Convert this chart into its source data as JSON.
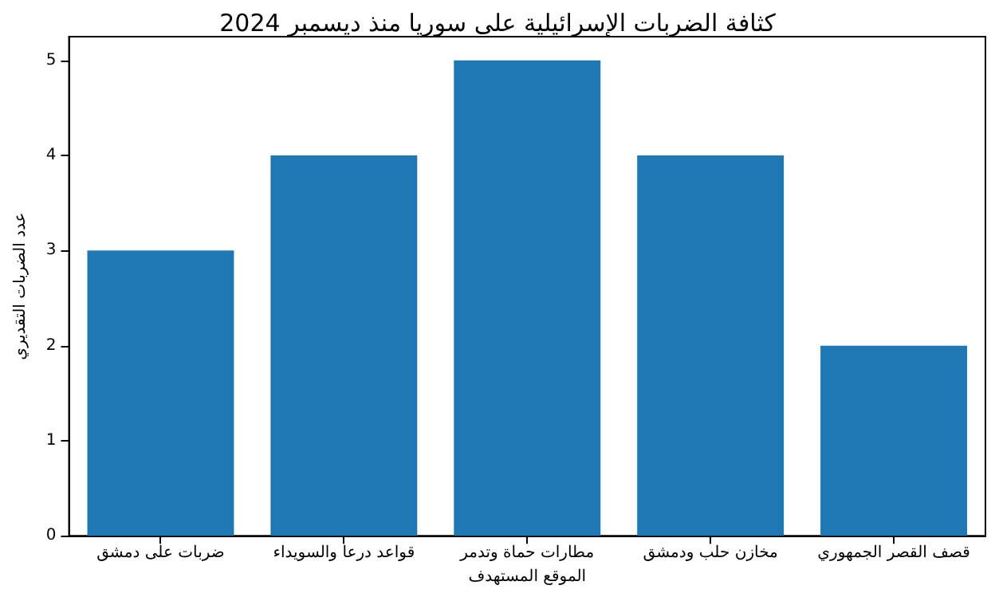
{
  "chart_data": {
    "type": "bar",
    "title": "كثافة الضربات الإسرائيلية على سوريا منذ ديسمبر 2024",
    "xlabel": "الموقع المستهدف",
    "ylabel": "عدد الضربات التقديري",
    "categories": [
      "ضربات على دمشق",
      "قواعد درعا والسويداء",
      "مطارات حماة وتدمر",
      "مخازن حلب ودمشق",
      "قصف القصر الجمهوري"
    ],
    "values": [
      3,
      4,
      5,
      4,
      2
    ],
    "color": "#1f77b4",
    "ylim": [
      0,
      5.25
    ],
    "yticks": [
      0,
      1,
      2,
      3,
      4,
      5
    ],
    "grid": false
  }
}
